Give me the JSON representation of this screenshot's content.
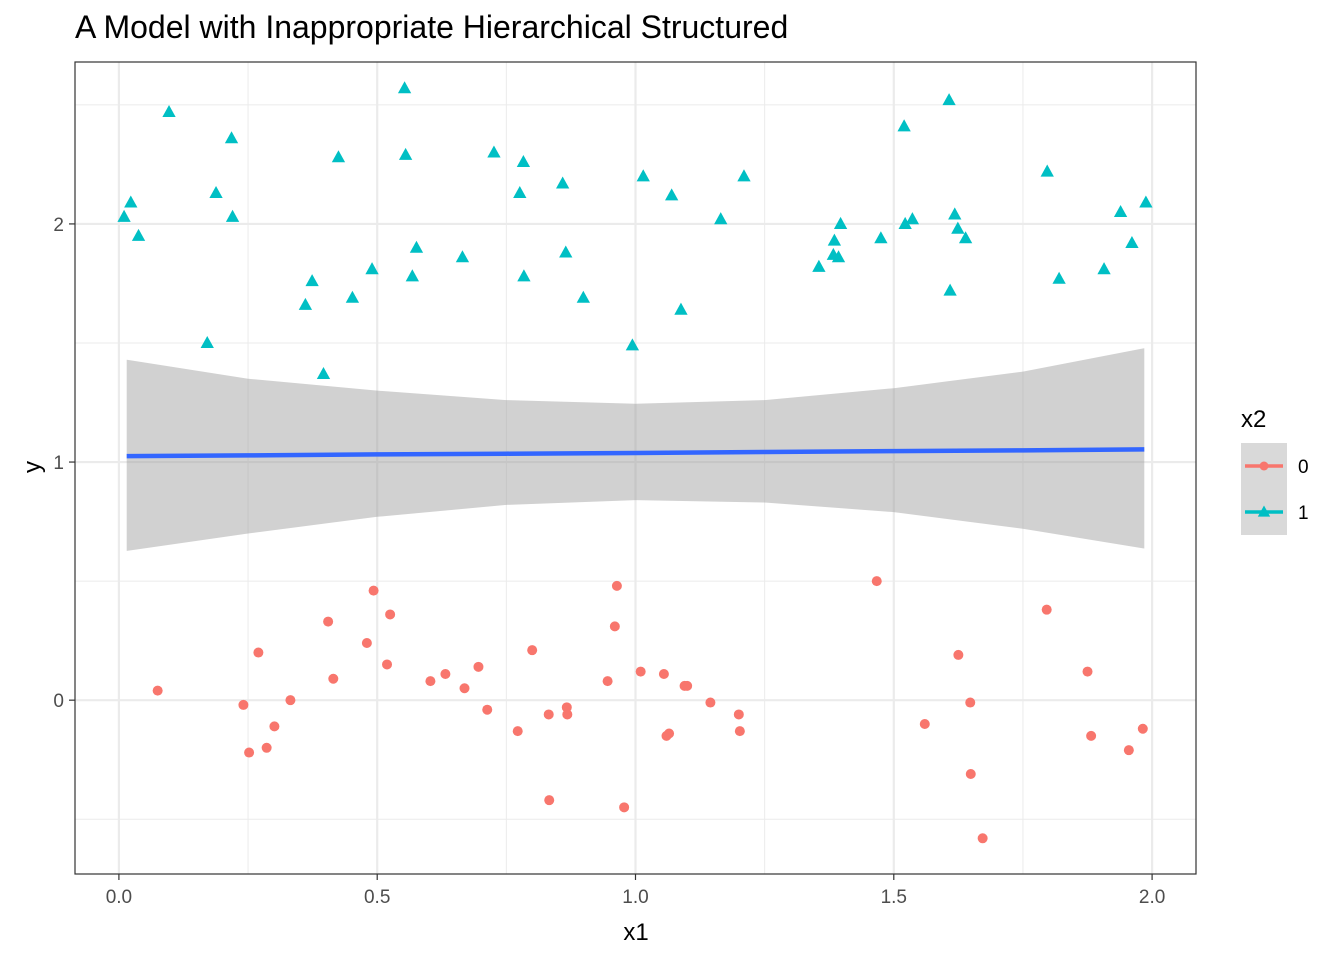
{
  "chart_data": {
    "type": "scatter",
    "title": "A Model with Inappropriate Hierarchical Structured",
    "xlabel": "x1",
    "ylabel": "y",
    "xlim": [
      -0.085,
      2.085
    ],
    "ylim": [
      -0.73,
      2.68
    ],
    "x_ticks": [
      0.0,
      0.5,
      1.0,
      1.5,
      2.0
    ],
    "x_tick_labels": [
      "0.0",
      "0.5",
      "1.0",
      "1.5",
      "2.0"
    ],
    "y_ticks": [
      0,
      1,
      2
    ],
    "y_tick_labels": [
      "0",
      "1",
      "2"
    ],
    "x_minor_ticks": [
      0.25,
      0.75,
      1.25,
      1.75
    ],
    "y_minor_ticks": [
      -0.5,
      0.5,
      1.5,
      2.5
    ],
    "grid": true,
    "legend": {
      "title": "x2",
      "position": "right"
    },
    "series": [
      {
        "name": "0",
        "shape": "circle",
        "color": "#F8766D",
        "points": [
          [
            0.075,
            0.04
          ],
          [
            0.241,
            -0.02
          ],
          [
            0.252,
            -0.22
          ],
          [
            0.27,
            0.2
          ],
          [
            0.286,
            -0.2
          ],
          [
            0.301,
            -0.11
          ],
          [
            0.332,
            0.0
          ],
          [
            0.405,
            0.33
          ],
          [
            0.415,
            0.09
          ],
          [
            0.48,
            0.24
          ],
          [
            0.493,
            0.46
          ],
          [
            0.519,
            0.15
          ],
          [
            0.525,
            0.36
          ],
          [
            0.603,
            0.08
          ],
          [
            0.632,
            0.11
          ],
          [
            0.669,
            0.05
          ],
          [
            0.696,
            0.14
          ],
          [
            0.713,
            -0.04
          ],
          [
            0.772,
            -0.13
          ],
          [
            0.8,
            0.21
          ],
          [
            0.832,
            -0.06
          ],
          [
            0.833,
            -0.42
          ],
          [
            0.867,
            -0.03
          ],
          [
            0.868,
            -0.06
          ],
          [
            0.946,
            0.08
          ],
          [
            0.96,
            0.31
          ],
          [
            0.964,
            0.48
          ],
          [
            0.978,
            -0.45
          ],
          [
            1.01,
            0.12
          ],
          [
            1.055,
            0.11
          ],
          [
            1.06,
            -0.15
          ],
          [
            1.065,
            -0.14
          ],
          [
            1.095,
            0.06
          ],
          [
            1.1,
            0.06
          ],
          [
            1.145,
            -0.01
          ],
          [
            1.2,
            -0.06
          ],
          [
            1.202,
            -0.13
          ],
          [
            1.467,
            0.5
          ],
          [
            1.56,
            -0.1
          ],
          [
            1.625,
            0.19
          ],
          [
            1.648,
            -0.01
          ],
          [
            1.649,
            -0.31
          ],
          [
            1.672,
            -0.58
          ],
          [
            1.796,
            0.38
          ],
          [
            1.875,
            0.12
          ],
          [
            1.882,
            -0.15
          ],
          [
            1.955,
            -0.21
          ],
          [
            1.982,
            -0.12
          ]
        ]
      },
      {
        "name": "1",
        "shape": "triangle",
        "color": "#00BFC4",
        "points": [
          [
            0.01,
            2.03
          ],
          [
            0.023,
            2.09
          ],
          [
            0.038,
            1.95
          ],
          [
            0.097,
            2.47
          ],
          [
            0.171,
            1.5
          ],
          [
            0.188,
            2.13
          ],
          [
            0.218,
            2.36
          ],
          [
            0.22,
            2.03
          ],
          [
            0.361,
            1.66
          ],
          [
            0.374,
            1.76
          ],
          [
            0.396,
            1.37
          ],
          [
            0.425,
            2.28
          ],
          [
            0.452,
            1.69
          ],
          [
            0.49,
            1.81
          ],
          [
            0.553,
            2.57
          ],
          [
            0.555,
            2.29
          ],
          [
            0.568,
            1.78
          ],
          [
            0.576,
            1.9
          ],
          [
            0.665,
            1.86
          ],
          [
            0.726,
            2.3
          ],
          [
            0.776,
            2.13
          ],
          [
            0.783,
            2.26
          ],
          [
            0.784,
            1.78
          ],
          [
            0.859,
            2.17
          ],
          [
            0.865,
            1.88
          ],
          [
            0.899,
            1.69
          ],
          [
            0.994,
            1.49
          ],
          [
            1.015,
            2.2
          ],
          [
            1.07,
            2.12
          ],
          [
            1.088,
            1.64
          ],
          [
            1.165,
            2.02
          ],
          [
            1.21,
            2.2
          ],
          [
            1.355,
            1.82
          ],
          [
            1.383,
            1.87
          ],
          [
            1.385,
            1.93
          ],
          [
            1.393,
            1.86
          ],
          [
            1.397,
            2.0
          ],
          [
            1.475,
            1.94
          ],
          [
            1.52,
            2.41
          ],
          [
            1.522,
            2.0
          ],
          [
            1.536,
            2.02
          ],
          [
            1.607,
            2.52
          ],
          [
            1.609,
            1.72
          ],
          [
            1.618,
            2.04
          ],
          [
            1.624,
            1.98
          ],
          [
            1.639,
            1.94
          ],
          [
            1.797,
            2.22
          ],
          [
            1.82,
            1.77
          ],
          [
            1.907,
            1.81
          ],
          [
            1.939,
            2.05
          ],
          [
            1.961,
            1.92
          ],
          [
            1.988,
            2.09
          ]
        ]
      }
    ],
    "fit": {
      "color": "#3366FF",
      "band_color": "#999999",
      "x": [
        0.015,
        0.25,
        0.5,
        0.75,
        1.0,
        1.25,
        1.5,
        1.75,
        1.985
      ],
      "y": [
        1.025,
        1.028,
        1.032,
        1.035,
        1.038,
        1.042,
        1.046,
        1.049,
        1.053
      ],
      "lower": [
        0.627,
        0.7,
        0.77,
        0.82,
        0.84,
        0.83,
        0.79,
        0.72,
        0.637
      ],
      "upper": [
        1.43,
        1.35,
        1.3,
        1.26,
        1.245,
        1.26,
        1.31,
        1.38,
        1.478
      ]
    }
  }
}
